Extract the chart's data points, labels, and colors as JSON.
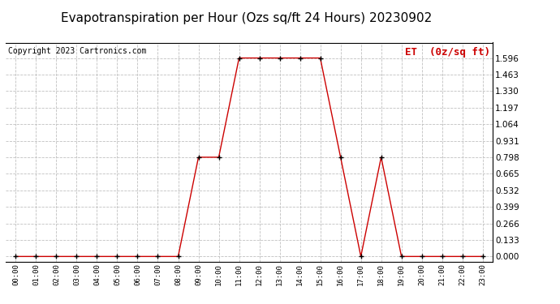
{
  "title": "Evapotranspiration per Hour (Ozs sq/ft 24 Hours) 20230902",
  "copyright_text": "Copyright 2023 Cartronics.com",
  "legend_label": "ET  (0z/sq ft)",
  "hours": [
    "00:00",
    "01:00",
    "02:00",
    "03:00",
    "04:00",
    "05:00",
    "06:00",
    "07:00",
    "08:00",
    "09:00",
    "10:00",
    "11:00",
    "12:00",
    "13:00",
    "14:00",
    "15:00",
    "16:00",
    "17:00",
    "18:00",
    "19:00",
    "20:00",
    "21:00",
    "22:00",
    "23:00"
  ],
  "values": [
    0.0,
    0.0,
    0.0,
    0.0,
    0.0,
    0.0,
    0.0,
    0.0,
    0.0,
    0.798,
    0.798,
    1.596,
    1.596,
    1.596,
    1.596,
    1.596,
    0.798,
    0.0,
    0.798,
    0.0,
    0.0,
    0.0,
    0.0,
    0.0
  ],
  "line_color": "#cc0000",
  "marker_color": "#000000",
  "grid_color": "#c0c0c0",
  "background_color": "#ffffff",
  "title_fontsize": 11,
  "copyright_fontsize": 7,
  "legend_fontsize": 9,
  "ylabel_tick_values": [
    0.0,
    0.133,
    0.266,
    0.399,
    0.532,
    0.665,
    0.798,
    0.931,
    1.064,
    1.197,
    1.33,
    1.463,
    1.596
  ],
  "ylim": [
    -0.04,
    1.72
  ]
}
